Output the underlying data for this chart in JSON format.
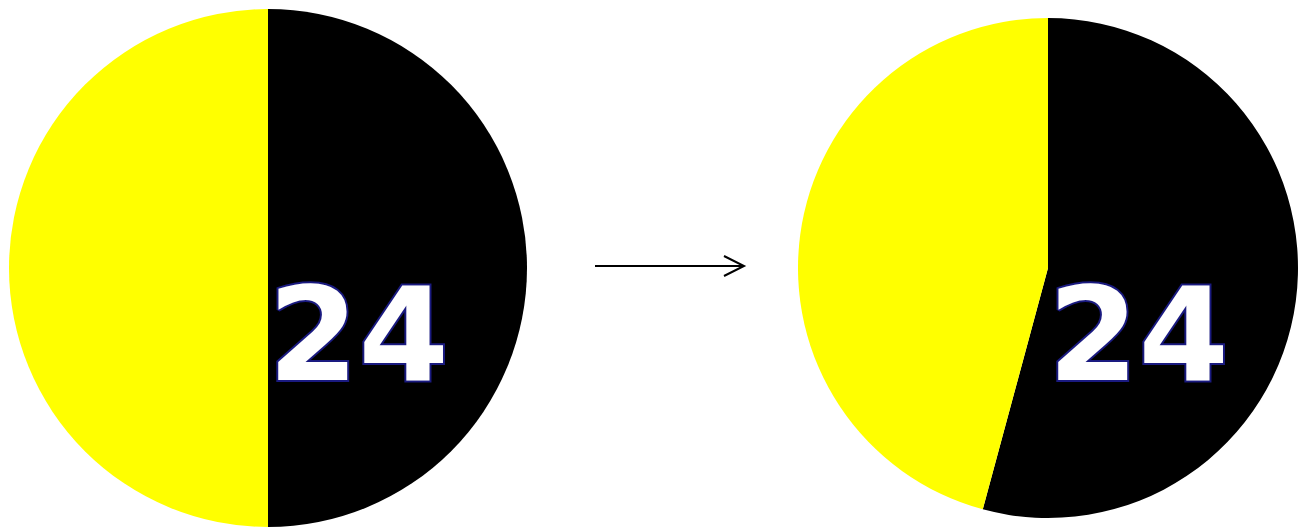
{
  "chart_data": [
    {
      "type": "pie",
      "categories": [
        null,
        null
      ],
      "values": [
        50,
        50
      ],
      "colors": [
        "#000000",
        "#ffff00"
      ],
      "annotations": [
        "24"
      ]
    },
    {
      "type": "pie",
      "categories": [
        null,
        null
      ],
      "values": [
        54.2,
        45.8
      ],
      "colors": [
        "#000000",
        "#ffff00"
      ],
      "annotations": [
        "24"
      ]
    }
  ]
}
